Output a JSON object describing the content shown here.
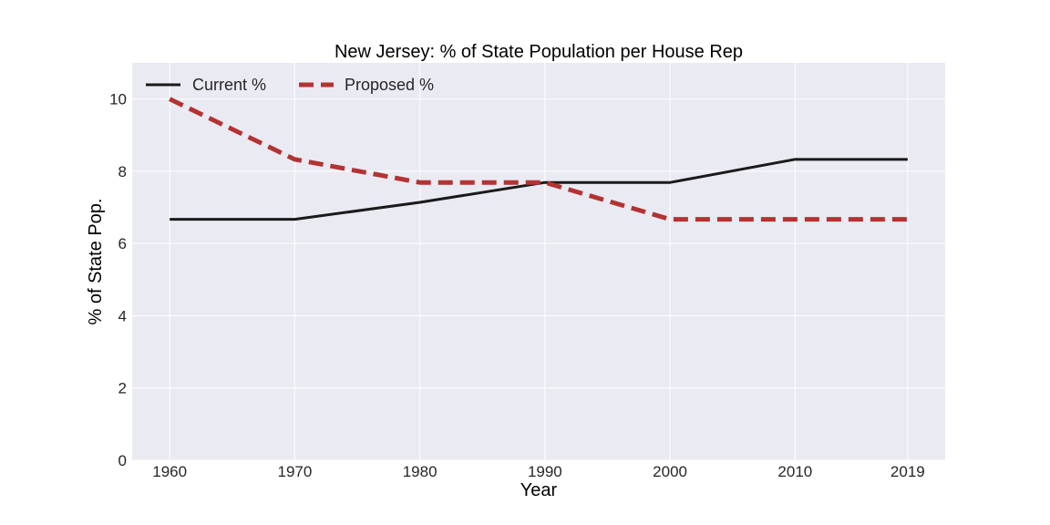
{
  "chart_data": {
    "type": "line",
    "title": "New Jersey: % of State Population per House Rep",
    "xlabel": "Year",
    "ylabel": "% of State Pop.",
    "x": [
      1960,
      1970,
      1980,
      1990,
      2000,
      2010,
      2019
    ],
    "x_ticks": [
      "1960",
      "1970",
      "1980",
      "1990",
      "2000",
      "2010",
      "2019"
    ],
    "y_ticks": [
      "0",
      "2",
      "4",
      "6",
      "8",
      "10"
    ],
    "xlim": [
      1957,
      2022
    ],
    "ylim": [
      0,
      11
    ],
    "grid": true,
    "legend_position": "top-left",
    "series": [
      {
        "name": "Current %",
        "values": [
          6.67,
          6.67,
          7.14,
          7.69,
          7.69,
          8.33,
          8.33
        ],
        "color": "#1a1a1a",
        "style": "solid"
      },
      {
        "name": "Proposed %",
        "values": [
          10.0,
          8.33,
          7.69,
          7.69,
          6.67,
          6.67,
          6.67
        ],
        "color": "#b33333",
        "style": "dashed"
      }
    ],
    "colors": {
      "plot_background": "#eaeaf2",
      "grid": "#ffffff"
    }
  }
}
